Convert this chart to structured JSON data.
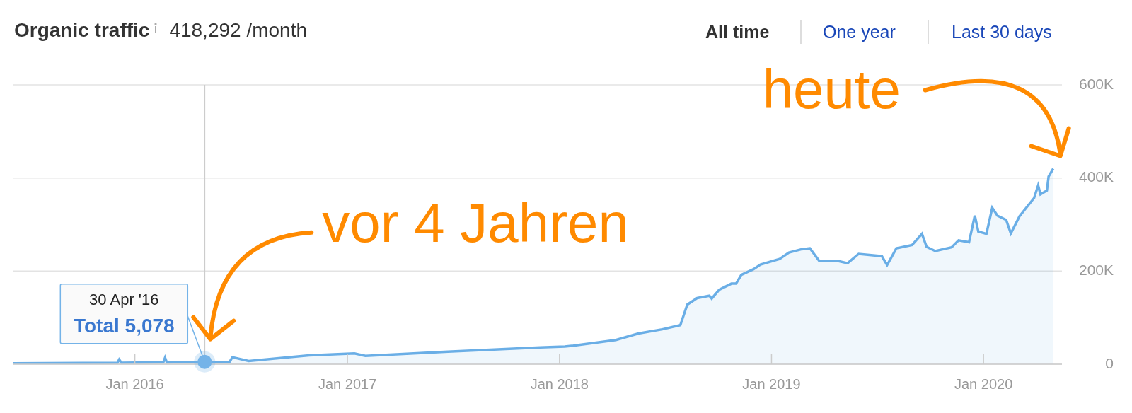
{
  "chart_data": {
    "type": "area",
    "title": "Organic traffic",
    "subtitle": "418,292 /month",
    "color": "#6aaee6",
    "x": [
      "2015-06-06",
      "2015-12-02",
      "2015-12-05",
      "2015-12-09",
      "2016-02-19",
      "2016-02-22",
      "2016-02-25",
      "2016-04-30",
      "2016-06-12",
      "2016-06-17",
      "2016-07-15",
      "2016-10-27",
      "2017-01-13",
      "2017-02-01",
      "2017-06-23",
      "2017-11-29",
      "2018-01-10",
      "2018-01-25",
      "2018-04-08",
      "2018-05-17",
      "2018-06-27",
      "2018-07-28",
      "2018-08-09",
      "2018-08-26",
      "2018-09-16",
      "2018-09-20",
      "2018-10-03",
      "2018-10-24",
      "2018-11-01",
      "2018-11-10",
      "2018-12-01",
      "2018-12-13",
      "2019-01-15",
      "2019-01-31",
      "2019-02-22",
      "2019-03-08",
      "2019-03-24",
      "2019-04-24",
      "2019-05-12",
      "2019-05-31",
      "2019-07-10",
      "2019-07-19",
      "2019-08-04",
      "2019-08-31",
      "2019-09-17",
      "2019-09-25",
      "2019-10-10",
      "2019-11-07",
      "2019-11-19",
      "2019-12-07",
      "2019-12-17",
      "2019-12-23",
      "2020-01-06",
      "2020-01-16",
      "2020-01-25",
      "2020-02-09",
      "2020-02-17",
      "2020-03-03",
      "2020-03-28",
      "2020-04-04",
      "2020-04-08",
      "2020-04-19",
      "2020-04-22",
      "2020-04-30"
    ],
    "values": [
      2000,
      3000,
      10000,
      3000,
      4000,
      14000,
      4000,
      5078,
      5000,
      15000,
      7000,
      19000,
      23000,
      18000,
      27000,
      36000,
      38000,
      40000,
      52000,
      66000,
      75000,
      84000,
      128000,
      142000,
      147000,
      141000,
      160000,
      173000,
      173000,
      192000,
      204000,
      214000,
      226000,
      240000,
      247000,
      249000,
      222000,
      222000,
      217000,
      237000,
      232000,
      213000,
      249000,
      256000,
      280000,
      252000,
      243000,
      251000,
      266000,
      262000,
      319000,
      285000,
      280000,
      336000,
      319000,
      310000,
      281000,
      318000,
      357000,
      384000,
      365000,
      373000,
      403000,
      420000
    ],
    "xlim": [
      "2015-06-06",
      "2020-05-15"
    ],
    "xticks": [
      {
        "value": "2016-01-01",
        "label": "Jan 2016"
      },
      {
        "value": "2017-01-01",
        "label": "Jan 2017"
      },
      {
        "value": "2018-01-01",
        "label": "Jan 2018"
      },
      {
        "value": "2019-01-01",
        "label": "Jan 2019"
      },
      {
        "value": "2020-01-01",
        "label": "Jan 2020"
      }
    ],
    "ylim": [
      0,
      600000
    ],
    "yticks": [
      0,
      {
        "value": 200000,
        "label": "200K"
      },
      {
        "value": 400000,
        "label": "400K"
      },
      {
        "value": 600000,
        "label": "600K"
      }
    ],
    "grid": "y",
    "ref_lines": [
      {
        "axis": "x",
        "value": "2016-04-30",
        "color": "#cccccc"
      }
    ],
    "annotations": [
      "All time",
      "One year",
      "Last 30 days",
      {
        "text": "vor 4 Jahren",
        "x": "2016-04-30",
        "y": 5078
      },
      {
        "text": "heute",
        "x": "2020-04-30",
        "y": 420000
      },
      "30 Apr '16",
      {
        "text": "Total 5,078",
        "x": "2016-04-30",
        "y": 5078
      }
    ]
  }
}
